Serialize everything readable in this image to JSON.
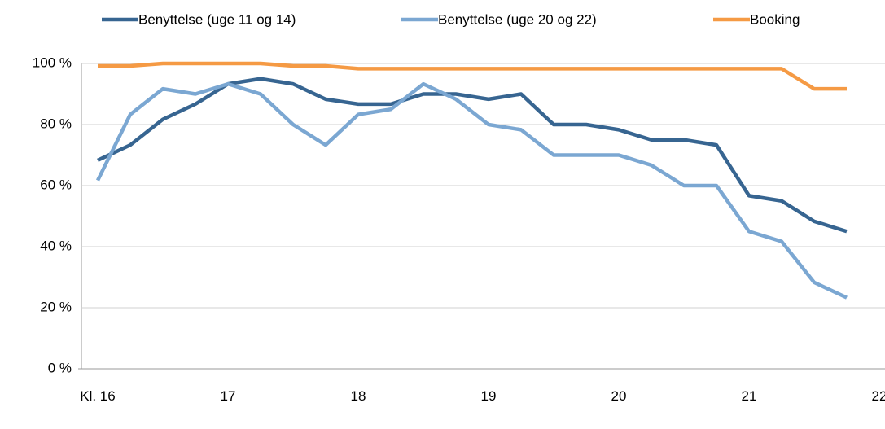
{
  "chart_data": {
    "type": "line",
    "x": [
      16,
      16.25,
      16.5,
      16.75,
      17,
      17.25,
      17.5,
      17.75,
      18,
      18.25,
      18.5,
      18.75,
      19,
      19.25,
      19.5,
      19.75,
      20,
      20.25,
      20.5,
      20.75,
      21,
      21.25,
      21.5,
      21.75
    ],
    "series": [
      {
        "name": "Benyttelse (uge 11 og 14)",
        "color": "#376591",
        "values": [
          68.3,
          73.3,
          81.7,
          86.7,
          93.3,
          95,
          93.3,
          88.3,
          86.7,
          86.7,
          90,
          90,
          88.3,
          90,
          80,
          80,
          78.3,
          75,
          75,
          73.3,
          56.7,
          55,
          48.3,
          45
        ]
      },
      {
        "name": "Benyttelse (uge 20 og 22)",
        "color": "#7ba7d2",
        "values": [
          61.7,
          83.3,
          91.7,
          90,
          93.3,
          90,
          80,
          73.3,
          83.3,
          85,
          93.3,
          88.3,
          80,
          78.3,
          70,
          70,
          70,
          66.7,
          60,
          60,
          45,
          41.7,
          28.3,
          23.3
        ]
      },
      {
        "name": "Booking",
        "color": "#f59a44",
        "values": [
          99.2,
          99.2,
          100,
          100,
          100,
          100,
          99.2,
          99.2,
          98.3,
          98.3,
          98.3,
          98.3,
          98.3,
          98.3,
          98.3,
          98.3,
          98.3,
          98.3,
          98.3,
          98.3,
          98.3,
          98.3,
          91.7,
          91.7
        ]
      }
    ],
    "xlim": [
      16,
      22
    ],
    "xticks": [
      {
        "value": 16,
        "label": "Kl. 16"
      },
      17,
      18,
      19,
      20,
      21,
      22
    ],
    "ylim": [
      0,
      100
    ],
    "yticks": [
      {
        "value": 0,
        "label": "0 %"
      },
      {
        "value": 20,
        "label": "20 %"
      },
      {
        "value": 40,
        "label": "40 %"
      },
      {
        "value": 60,
        "label": "60 %"
      },
      {
        "value": 80,
        "label": "80 %"
      },
      {
        "value": 100,
        "label": "100 %"
      }
    ],
    "grid": true,
    "legend": "top"
  }
}
